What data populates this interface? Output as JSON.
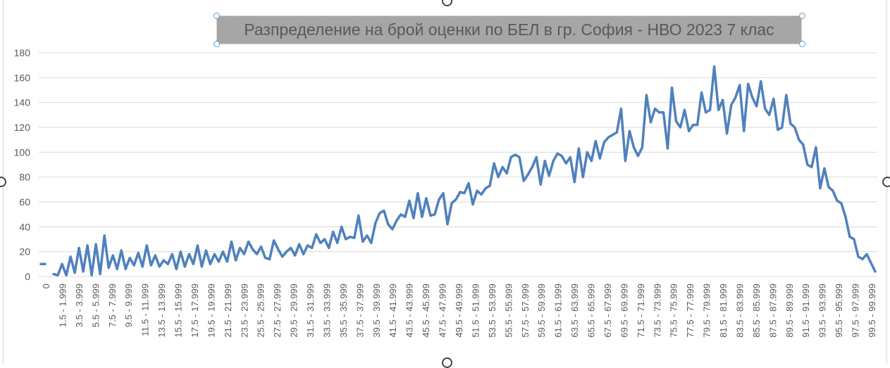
{
  "chart_data": {
    "type": "line",
    "title": "Разпределение на брой оценки по БЕЛ в гр. София - НВО 2023 7 клас",
    "xlabel": "",
    "ylabel": "",
    "ylim": [
      0,
      180
    ],
    "yticks": [
      0,
      20,
      40,
      60,
      80,
      100,
      120,
      140,
      160,
      180
    ],
    "grid": true,
    "legend": "none",
    "line_color": "#4f81bd",
    "x_tick_labels": [
      "0",
      "1.5 - 1.999",
      "3.5 - 3.999",
      "5.5 - 5.999",
      "7.5 - 7.999",
      "9.5 - 9.999",
      "11.5 - 11.999",
      "13.5 - 13.999",
      "15.5 - 15.999",
      "17.5 - 17.999",
      "19.5 - 19.999",
      "21.5 - 21.999",
      "23.5 - 23.999",
      "25.5 - 25.999",
      "27.5 - 27.999",
      "29.5 - 29.999",
      "31.5 - 31.999",
      "33.5 - 33.999",
      "35.5 - 35.999",
      "37.5 - 37.999",
      "39.5 - 39.999",
      "41.5 - 41.999",
      "43.5 - 43.999",
      "45.5 - 45.999",
      "47.5 - 47.999",
      "49.5 - 49.999",
      "51.5 - 51.999",
      "53.5 - 53.999",
      "55.5 - 55.999",
      "57.5 - 57.999",
      "59.5 - 59.999",
      "61.5 - 61.999",
      "63.5 - 63.999",
      "65.5 - 65.999",
      "67.5 - 67.999",
      "69.5 - 69.999",
      "71.5 - 71.999",
      "73.5 - 73.999",
      "75.5 - 75.999",
      "77.5 - 77.999",
      "79.5 - 79.999",
      "81.5 - 81.999",
      "83.5 - 83.999",
      "85.5 - 85.999",
      "87.5 - 87.999",
      "89.5 - 89.999",
      "91.5 - 91.999",
      "93.5 - 93.999",
      "95.5 - 95.999",
      "97.5 - 97.999",
      "99.5 - 99.999"
    ],
    "segments": [
      [
        10,
        10
      ],
      [
        2,
        1,
        10,
        1,
        16,
        3,
        23,
        4,
        25,
        1,
        26,
        2,
        33,
        7,
        17,
        6,
        21,
        6,
        15,
        9,
        19,
        8,
        25,
        9,
        17,
        8,
        13,
        10,
        18,
        6,
        20,
        8,
        18,
        10,
        25,
        8,
        21,
        10,
        18,
        12,
        20,
        12,
        28,
        13,
        23,
        18,
        28,
        22,
        18,
        24,
        15,
        14,
        29,
        22,
        16,
        20,
        23,
        17,
        26,
        18,
        25,
        23,
        34,
        27,
        30,
        23,
        36,
        27,
        40,
        30,
        32,
        31,
        49,
        28,
        33,
        27,
        43,
        51,
        53,
        42,
        38,
        45,
        50,
        48,
        61,
        47,
        67,
        48,
        63,
        49,
        50,
        62,
        67,
        42,
        59,
        62,
        68,
        67,
        75,
        58,
        69,
        66,
        71,
        73,
        91,
        80,
        88,
        83,
        96,
        98,
        96,
        77,
        82,
        88,
        96,
        74,
        93,
        81,
        93,
        99,
        97,
        91,
        96,
        76,
        103,
        80,
        100,
        93,
        109,
        95,
        108,
        112,
        114,
        116,
        135,
        93,
        117,
        104,
        97,
        104,
        146,
        124,
        135,
        132,
        132,
        103,
        152,
        125,
        120,
        134,
        117,
        122,
        122,
        148,
        132,
        134,
        169,
        134,
        142,
        115,
        138,
        144,
        154,
        117,
        155,
        144,
        137,
        157,
        135,
        130,
        143,
        118,
        120,
        146,
        123,
        120,
        110,
        106,
        90,
        88,
        104,
        71,
        87,
        72,
        69,
        61,
        59,
        48,
        32,
        30,
        16,
        14,
        18,
        11,
        4
      ]
    ]
  }
}
